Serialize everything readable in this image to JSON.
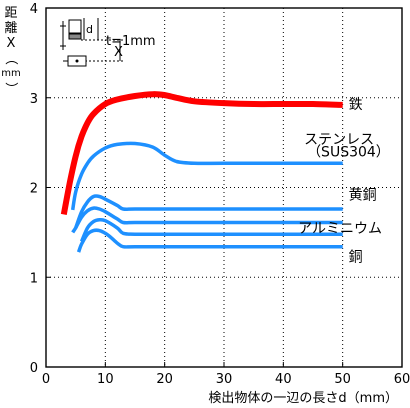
{
  "chart_data": {
    "type": "line",
    "title": "",
    "xlabel": "検出物体の一辺の長さd（mm）",
    "ylabel_chars": [
      "距",
      "離",
      "X",
      "（",
      "mm",
      "）"
    ],
    "xlim": [
      0,
      60
    ],
    "ylim": [
      0,
      4
    ],
    "xticks": [
      0,
      10,
      20,
      30,
      40,
      50,
      60
    ],
    "yticks": [
      0,
      1,
      2,
      3,
      4
    ],
    "grid": true,
    "legend": "none",
    "inset": {
      "d_label": "d",
      "x_label": "X",
      "t_label": "t=1mm"
    },
    "series": [
      {
        "name": "鉄",
        "color": "#ff0000",
        "x": [
          3,
          4,
          5,
          6,
          7,
          8,
          10,
          12,
          15,
          18,
          20,
          22,
          25,
          30,
          35,
          40,
          45,
          50
        ],
        "y": [
          1.7,
          2.05,
          2.35,
          2.57,
          2.72,
          2.82,
          2.93,
          2.98,
          3.02,
          3.04,
          3.03,
          3.0,
          2.96,
          2.94,
          2.93,
          2.93,
          2.93,
          2.92
        ]
      },
      {
        "name": "ステンレス（SUS304）",
        "color": "#1e90ff",
        "x": [
          4.5,
          5,
          6,
          7,
          8,
          10,
          12,
          15,
          18,
          20,
          22,
          25,
          30,
          40,
          50
        ],
        "y": [
          1.75,
          1.95,
          2.15,
          2.27,
          2.35,
          2.44,
          2.48,
          2.49,
          2.45,
          2.36,
          2.29,
          2.27,
          2.27,
          2.27,
          2.27
        ]
      },
      {
        "name": "黄銅",
        "color": "#1e90ff",
        "x": [
          5,
          6,
          7,
          8,
          9,
          10,
          12,
          13,
          15,
          20,
          30,
          40,
          50
        ],
        "y": [
          1.55,
          1.73,
          1.84,
          1.9,
          1.9,
          1.87,
          1.8,
          1.76,
          1.76,
          1.76,
          1.76,
          1.76,
          1.76
        ]
      },
      {
        "name": "",
        "color": "#1e90ff",
        "x": [
          4.5,
          5,
          6,
          7,
          8,
          9,
          10,
          12,
          13,
          15,
          20,
          30,
          40,
          50
        ],
        "y": [
          1.5,
          1.55,
          1.67,
          1.74,
          1.77,
          1.76,
          1.73,
          1.65,
          1.61,
          1.61,
          1.61,
          1.61,
          1.61,
          1.61
        ]
      },
      {
        "name": "アルミニウム",
        "color": "#1e90ff",
        "x": [
          6,
          7,
          8,
          9,
          10,
          12,
          13,
          15,
          20,
          30,
          40,
          50
        ],
        "y": [
          1.4,
          1.55,
          1.62,
          1.64,
          1.63,
          1.55,
          1.49,
          1.48,
          1.48,
          1.48,
          1.48,
          1.48
        ]
      },
      {
        "name": "銅",
        "color": "#1e90ff",
        "x": [
          5.5,
          6,
          7,
          8,
          9,
          10,
          11,
          12,
          13,
          15,
          20,
          30,
          40,
          50
        ],
        "y": [
          1.28,
          1.37,
          1.48,
          1.52,
          1.52,
          1.49,
          1.44,
          1.38,
          1.34,
          1.34,
          1.34,
          1.34,
          1.34,
          1.34
        ]
      }
    ],
    "labels": [
      {
        "text": "鉄",
        "x": 51,
        "y": 2.93
      },
      {
        "text": "ステンレス",
        "x": 43.5,
        "y": 2.54
      },
      {
        "text": "（SUS304）",
        "x": 44,
        "y": 2.4
      },
      {
        "text": "黄銅",
        "x": 51,
        "y": 1.92
      },
      {
        "text": "アルミニウム",
        "x": 42.5,
        "y": 1.55
      },
      {
        "text": "銅",
        "x": 51,
        "y": 1.23
      }
    ]
  }
}
